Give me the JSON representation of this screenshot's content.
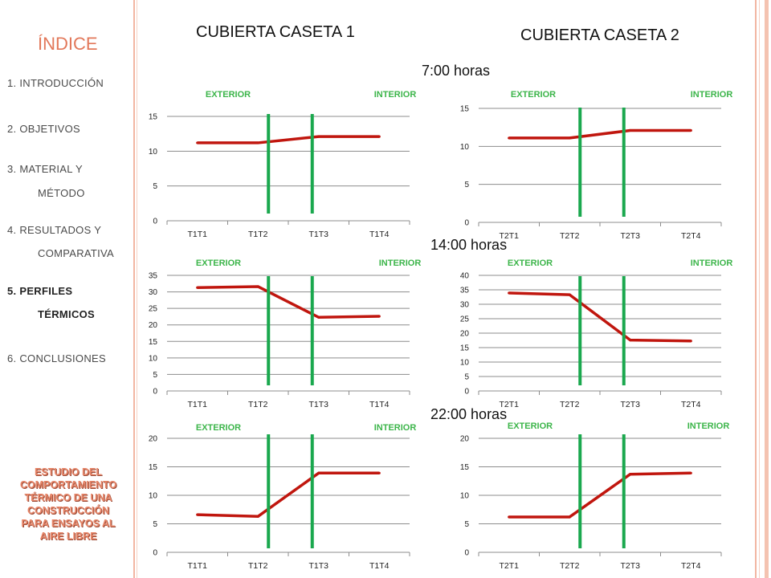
{
  "sidebar": {
    "title": "ÍNDICE",
    "items": [
      {
        "label": "1. INTRODUCCIÓN"
      },
      {
        "label": "2. OBJETIVOS"
      },
      {
        "label": "3. MATERIAL Y",
        "label2": "MÉTODO"
      },
      {
        "label": "4. RESULTADOS  Y",
        "label2": "COMPARATIVA"
      },
      {
        "label": "5. PERFILES",
        "label2": "TÉRMICOS",
        "active": true
      },
      {
        "label": "6. CONCLUSIONES"
      }
    ],
    "footer_lines": [
      "ESTUDIO DEL",
      "COMPORTAMIENTO",
      "TÉRMICO DE UNA",
      "CONSTRUCCIÓN",
      "PARA ENSAYOS AL",
      "AIRE LIBRE"
    ]
  },
  "headers": {
    "caseta1": "CUBIERTA CASETA 1",
    "caseta2": "CUBIERTA CASETA 2"
  },
  "times": {
    "t0700": "7:00 horas",
    "t1400": "14:00 horas",
    "t2200": "22:00 horas"
  },
  "colors": {
    "accent": "#e2785a",
    "series": "#c0160e",
    "marker": "#1aa84e",
    "label_green": "#3cb54a",
    "grid": "#8c8c8c",
    "sidebar_line": "#f2b6a2"
  },
  "chart_data": [
    {
      "type": "line",
      "time": "7:00 horas",
      "caseta": "CUBIERTA CASETA 1",
      "exterior_label": "EXTERIOR",
      "interior_label": "INTERIOR",
      "categories": [
        "T1T1",
        "T1T2",
        "T1T3",
        "T1T4"
      ],
      "values": [
        11.2,
        11.2,
        12.1,
        12.1
      ],
      "ylim": [
        0,
        15
      ],
      "yticks": [
        0,
        5,
        10,
        15
      ]
    },
    {
      "type": "line",
      "time": "7:00 horas",
      "caseta": "CUBIERTA CASETA 2",
      "exterior_label": "EXTERIOR",
      "interior_label": "INTERIOR",
      "categories": [
        "T2T1",
        "T2T2",
        "T2T3",
        "T2T4"
      ],
      "values": [
        11.1,
        11.1,
        12.1,
        12.1
      ],
      "ylim": [
        0,
        15
      ],
      "yticks": [
        0,
        5,
        10,
        15
      ]
    },
    {
      "type": "line",
      "time": "14:00 horas",
      "caseta": "CUBIERTA CASETA 1",
      "exterior_label": "EXTERIOR",
      "interior_label": "INTERIOR",
      "categories": [
        "T1T1",
        "T1T2",
        "T1T3",
        "T1T4"
      ],
      "values": [
        31.3,
        31.6,
        22.3,
        22.6
      ],
      "ylim": [
        0,
        35
      ],
      "yticks": [
        0,
        5,
        10,
        15,
        20,
        25,
        30,
        35
      ]
    },
    {
      "type": "line",
      "time": "14:00 horas",
      "caseta": "CUBIERTA CASETA 2",
      "exterior_label": "EXTERIOR",
      "interior_label": "INTERIOR",
      "categories": [
        "T2T1",
        "T2T2",
        "T2T3",
        "T2T4"
      ],
      "values": [
        33.9,
        33.3,
        17.6,
        17.3
      ],
      "ylim": [
        0,
        40
      ],
      "yticks": [
        0,
        5,
        10,
        15,
        20,
        25,
        30,
        35,
        40
      ]
    },
    {
      "type": "line",
      "time": "22:00 horas",
      "caseta": "CUBIERTA CASETA 1",
      "exterior_label": "EXTERIOR",
      "interior_label": "INTERIOR",
      "categories": [
        "T1T1",
        "T1T2",
        "T1T3",
        "T1T4"
      ],
      "values": [
        6.6,
        6.3,
        13.9,
        13.9
      ],
      "ylim": [
        0,
        20
      ],
      "yticks": [
        0,
        5,
        10,
        15,
        20
      ]
    },
    {
      "type": "line",
      "time": "22:00 horas",
      "caseta": "CUBIERTA CASETA 2",
      "exterior_label": "EXTERIOR",
      "interior_label": "INTERIOR",
      "categories": [
        "T2T1",
        "T2T2",
        "T2T3",
        "T2T4"
      ],
      "values": [
        6.2,
        6.2,
        13.7,
        13.9
      ],
      "ylim": [
        0,
        20
      ],
      "yticks": [
        0,
        5,
        10,
        15,
        20
      ]
    }
  ]
}
